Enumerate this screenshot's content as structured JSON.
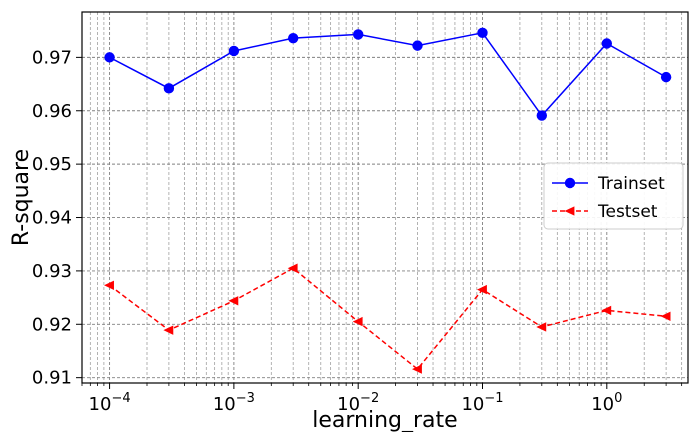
{
  "chart_data": {
    "type": "line",
    "title": "",
    "xlabel": "learning_rate",
    "ylabel": "R-square",
    "xscale": "log",
    "xlim": [
      6e-05,
      4.5
    ],
    "ylim": [
      0.909,
      0.9785
    ],
    "grid": true,
    "grid_style": "dashed, major and minor",
    "legend_position": "center-right",
    "x_ticks": [
      0.0001,
      0.001,
      0.01,
      0.1,
      1
    ],
    "x_tick_labels": [
      {
        "base": "10",
        "exp": "−4"
      },
      {
        "base": "10",
        "exp": "−3"
      },
      {
        "base": "10",
        "exp": "−2"
      },
      {
        "base": "10",
        "exp": "−1"
      },
      {
        "base": "10",
        "exp": "0"
      }
    ],
    "y_ticks": [
      0.91,
      0.92,
      0.93,
      0.94,
      0.95,
      0.96,
      0.97
    ],
    "y_tick_labels": [
      "0.91",
      "0.92",
      "0.93",
      "0.94",
      "0.95",
      "0.96",
      "0.97"
    ],
    "x": [
      0.0001,
      0.0003,
      0.001,
      0.003,
      0.01,
      0.03,
      0.1,
      0.3,
      1,
      3
    ],
    "series": [
      {
        "name": "Trainset",
        "color": "#0000ff",
        "line": "solid",
        "marker": "circle",
        "values": [
          0.97,
          0.9642,
          0.9712,
          0.9736,
          0.9743,
          0.9722,
          0.9746,
          0.9591,
          0.9726,
          0.9663
        ]
      },
      {
        "name": "Testset",
        "color": "#ff0000",
        "line": "dashed",
        "marker": "triangle-left",
        "values": [
          0.9273,
          0.9189,
          0.9244,
          0.9305,
          0.9205,
          0.9116,
          0.9265,
          0.9195,
          0.9226,
          0.9215
        ]
      }
    ]
  }
}
